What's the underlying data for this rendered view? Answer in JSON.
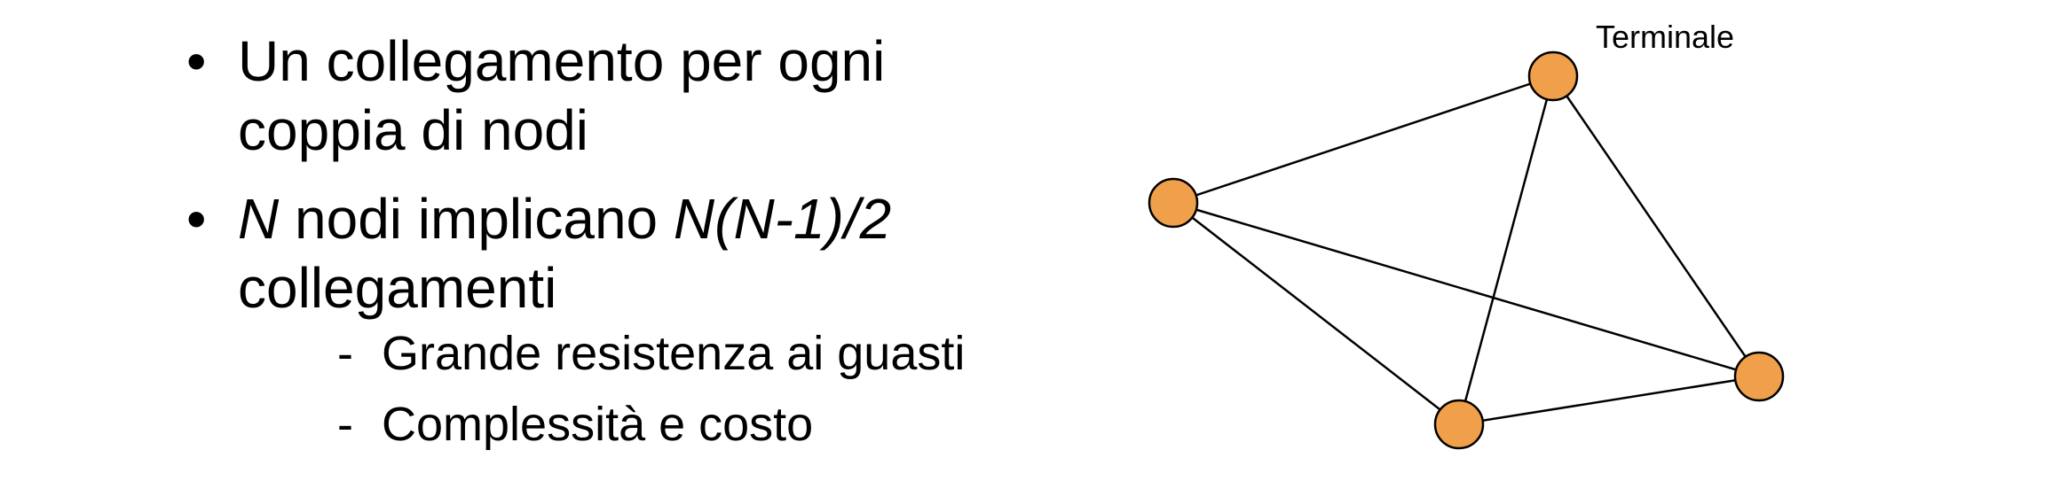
{
  "slide": {
    "title_fragment": "",
    "bullets": [
      {
        "text_lines": [
          "Un collegamento per ogni",
          "coppia di nodi"
        ]
      },
      {
        "n_var": "N",
        "middle": " nodi implicano ",
        "formula": "N(N-1)/2",
        "line2": "collegamenti",
        "sub_items": [
          "Grande resistenza ai guasti",
          "Complessità e costo"
        ]
      }
    ]
  },
  "diagram": {
    "label": "Terminale",
    "node_color": "#F0A04B",
    "stroke_color": "#000000",
    "nodes": [
      "node-left",
      "node-top",
      "node-right",
      "node-bottom"
    ],
    "links": [
      [
        "node-left",
        "node-top"
      ],
      [
        "node-left",
        "node-right"
      ],
      [
        "node-left",
        "node-bottom"
      ],
      [
        "node-top",
        "node-right"
      ],
      [
        "node-top",
        "node-bottom"
      ],
      [
        "node-bottom",
        "node-right"
      ]
    ]
  }
}
